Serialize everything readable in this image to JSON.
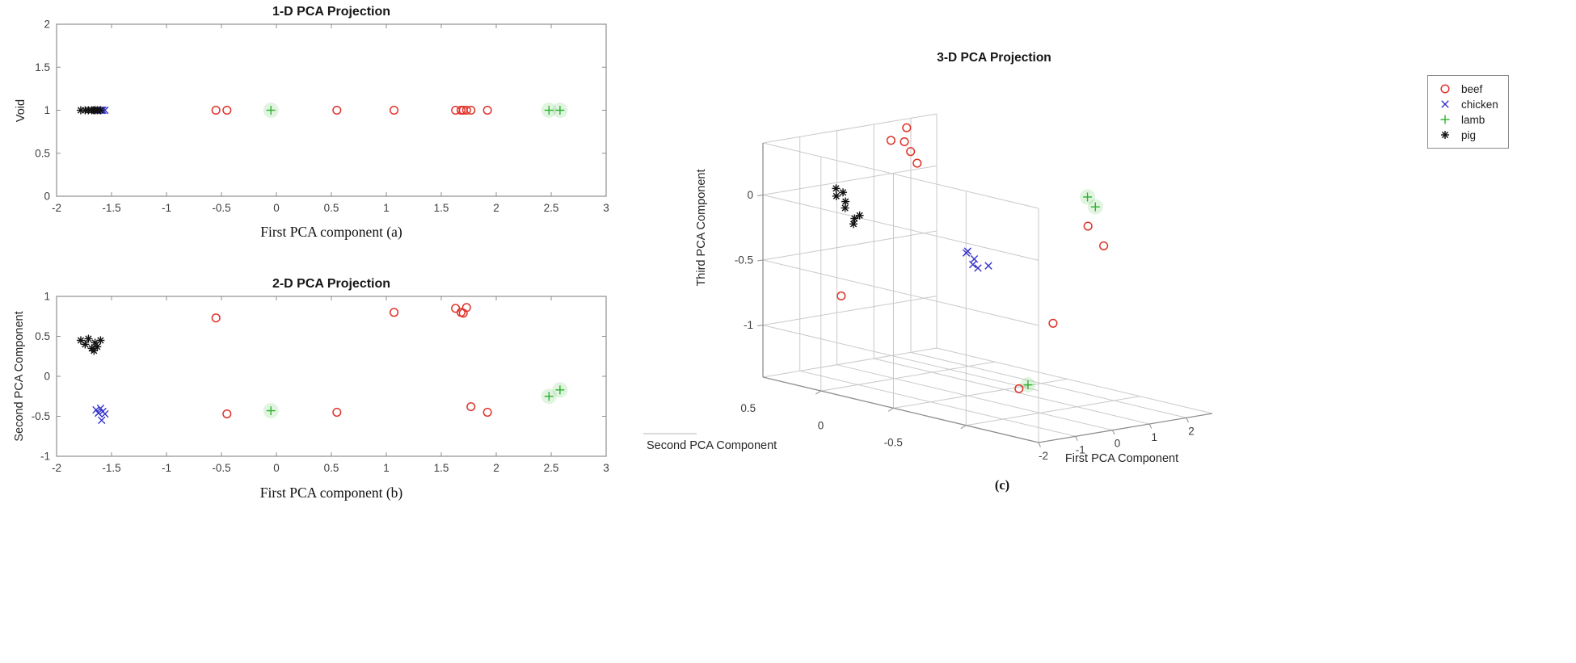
{
  "page": {
    "background": "#ffffff"
  },
  "colors": {
    "beef": "#e03128",
    "chicken": "#3534cb",
    "lamb": "#2db32d",
    "pig": "#111111",
    "axis_box": "#8f8f8f",
    "grid3d": "#c9c9c9",
    "tick_label": "#3d3d3d",
    "title": "#161616",
    "legend_border": "#8a8a8a"
  },
  "legend": {
    "items": [
      {
        "label": "beef",
        "marker": "circle",
        "color_key": "beef"
      },
      {
        "label": "chicken",
        "marker": "x",
        "color_key": "chicken"
      },
      {
        "label": "lamb",
        "marker": "plus",
        "color_key": "lamb"
      },
      {
        "label": "pig",
        "marker": "asterisk",
        "color_key": "pig"
      }
    ]
  },
  "chart_data": [
    {
      "id": "pca-1d",
      "type": "scatter",
      "title": "1-D PCA Projection",
      "xlabel": "First PCA component  (a)",
      "ylabel": "Void",
      "xlim": [
        -2,
        3
      ],
      "ylim": [
        0,
        2
      ],
      "xticks": [
        -2,
        -1.5,
        -1,
        -0.5,
        0,
        0.5,
        1,
        1.5,
        2,
        2.5,
        3
      ],
      "yticks": [
        0,
        0.5,
        1,
        1.5,
        2
      ],
      "grid": false,
      "series": [
        {
          "name": "beef",
          "marker": "circle",
          "points": [
            [
              -0.55,
              1
            ],
            [
              -0.45,
              1
            ],
            [
              0.55,
              1
            ],
            [
              1.07,
              1
            ],
            [
              1.63,
              1
            ],
            [
              1.68,
              1
            ],
            [
              1.7,
              1
            ],
            [
              1.73,
              1
            ],
            [
              1.77,
              1
            ],
            [
              1.92,
              1
            ]
          ]
        },
        {
          "name": "chicken",
          "marker": "x",
          "points": [
            [
              -1.64,
              1
            ],
            [
              -1.62,
              1
            ],
            [
              -1.6,
              1
            ],
            [
              -1.58,
              1
            ],
            [
              -1.56,
              1
            ],
            [
              -1.59,
              1
            ]
          ]
        },
        {
          "name": "lamb",
          "marker": "plus",
          "halo": true,
          "points": [
            [
              -0.05,
              1
            ],
            [
              2.48,
              1
            ],
            [
              2.58,
              1
            ]
          ]
        },
        {
          "name": "pig",
          "marker": "asterisk",
          "points": [
            [
              -1.78,
              1
            ],
            [
              -1.74,
              1
            ],
            [
              -1.71,
              1
            ],
            [
              -1.68,
              1
            ],
            [
              -1.65,
              1
            ],
            [
              -1.63,
              1
            ],
            [
              -1.6,
              1
            ],
            [
              -1.66,
              1
            ]
          ]
        }
      ]
    },
    {
      "id": "pca-2d",
      "type": "scatter",
      "title": "2-D PCA Projection",
      "xlabel": "First PCA component  (b)",
      "ylabel": "Second PCA Component",
      "xlim": [
        -2,
        3
      ],
      "ylim": [
        -1,
        1
      ],
      "xticks": [
        -2,
        -1.5,
        -1,
        -0.5,
        0,
        0.5,
        1,
        1.5,
        2,
        2.5,
        3
      ],
      "yticks": [
        -1,
        -0.5,
        0,
        0.5,
        1
      ],
      "grid": false,
      "series": [
        {
          "name": "beef",
          "marker": "circle",
          "points": [
            [
              -0.55,
              0.73
            ],
            [
              -0.45,
              -0.47
            ],
            [
              0.55,
              -0.45
            ],
            [
              1.07,
              0.8
            ],
            [
              1.63,
              0.85
            ],
            [
              1.68,
              0.8
            ],
            [
              1.7,
              0.79
            ],
            [
              1.73,
              0.86
            ],
            [
              1.77,
              -0.38
            ],
            [
              1.92,
              -0.45
            ]
          ]
        },
        {
          "name": "chicken",
          "marker": "x",
          "points": [
            [
              -1.64,
              -0.42
            ],
            [
              -1.62,
              -0.46
            ],
            [
              -1.6,
              -0.4
            ],
            [
              -1.58,
              -0.44
            ],
            [
              -1.56,
              -0.47
            ],
            [
              -1.59,
              -0.55
            ]
          ]
        },
        {
          "name": "lamb",
          "marker": "plus",
          "halo": true,
          "points": [
            [
              -0.05,
              -0.43
            ],
            [
              2.48,
              -0.25
            ],
            [
              2.58,
              -0.17
            ]
          ]
        },
        {
          "name": "pig",
          "marker": "asterisk",
          "points": [
            [
              -1.78,
              0.45
            ],
            [
              -1.74,
              0.4
            ],
            [
              -1.71,
              0.47
            ],
            [
              -1.68,
              0.35
            ],
            [
              -1.65,
              0.42
            ],
            [
              -1.63,
              0.37
            ],
            [
              -1.6,
              0.45
            ],
            [
              -1.66,
              0.32
            ]
          ]
        }
      ]
    },
    {
      "id": "pca-3d",
      "type": "scatter3d",
      "title": "3-D PCA Projection",
      "xlabel": "First PCA Component",
      "ylabel": "Second PCA Component",
      "zlabel": "Third PCA Component",
      "caption": "(c)",
      "xlim": [
        -2,
        2.7
      ],
      "ylim": [
        -1,
        0.9
      ],
      "zlim": [
        -1.4,
        0.4
      ],
      "xticks": [
        -2,
        -1,
        0,
        1,
        2
      ],
      "yticks": [
        0.5,
        0,
        -0.5
      ],
      "zticks": [
        0,
        -0.5,
        -1
      ],
      "grid": true,
      "series": [
        {
          "name": "beef",
          "marker": "circle",
          "points": [
            [
              -0.55,
              0.73,
              -0.8
            ],
            [
              -0.45,
              -0.47,
              -1.2
            ],
            [
              0.55,
              -0.45,
              -0.75
            ],
            [
              1.07,
              0.8,
              0.3
            ],
            [
              1.63,
              0.85,
              0.25
            ],
            [
              1.7,
              0.78,
              0.1
            ],
            [
              1.73,
              0.86,
              0.35
            ],
            [
              1.68,
              0.82,
              0.18
            ],
            [
              1.77,
              -0.38,
              -0.08
            ],
            [
              1.92,
              -0.45,
              -0.22
            ]
          ]
        },
        {
          "name": "chicken",
          "marker": "x",
          "points": [
            [
              -1.64,
              -0.42,
              -0.1
            ],
            [
              -1.62,
              -0.46,
              -0.15
            ],
            [
              -1.6,
              -0.4,
              -0.12
            ],
            [
              -1.58,
              -0.44,
              -0.2
            ],
            [
              -1.56,
              -0.47,
              -0.22
            ],
            [
              -1.59,
              -0.55,
              -0.18
            ]
          ]
        },
        {
          "name": "lamb",
          "marker": "plus",
          "halo": true,
          "points": [
            [
              -0.05,
              -0.43,
              -1.2
            ],
            [
              2.48,
              -0.25,
              0.0
            ],
            [
              2.58,
              -0.17,
              0.05
            ]
          ]
        },
        {
          "name": "pig",
          "marker": "asterisk",
          "points": [
            [
              -1.78,
              0.45,
              0.1
            ],
            [
              -1.74,
              0.4,
              0.02
            ],
            [
              -1.71,
              0.47,
              0.15
            ],
            [
              -1.68,
              0.35,
              -0.05
            ],
            [
              -1.65,
              0.42,
              0.06
            ],
            [
              -1.63,
              0.37,
              -0.1
            ],
            [
              -1.6,
              0.45,
              0.12
            ],
            [
              -1.66,
              0.32,
              -0.02
            ]
          ]
        }
      ]
    }
  ]
}
